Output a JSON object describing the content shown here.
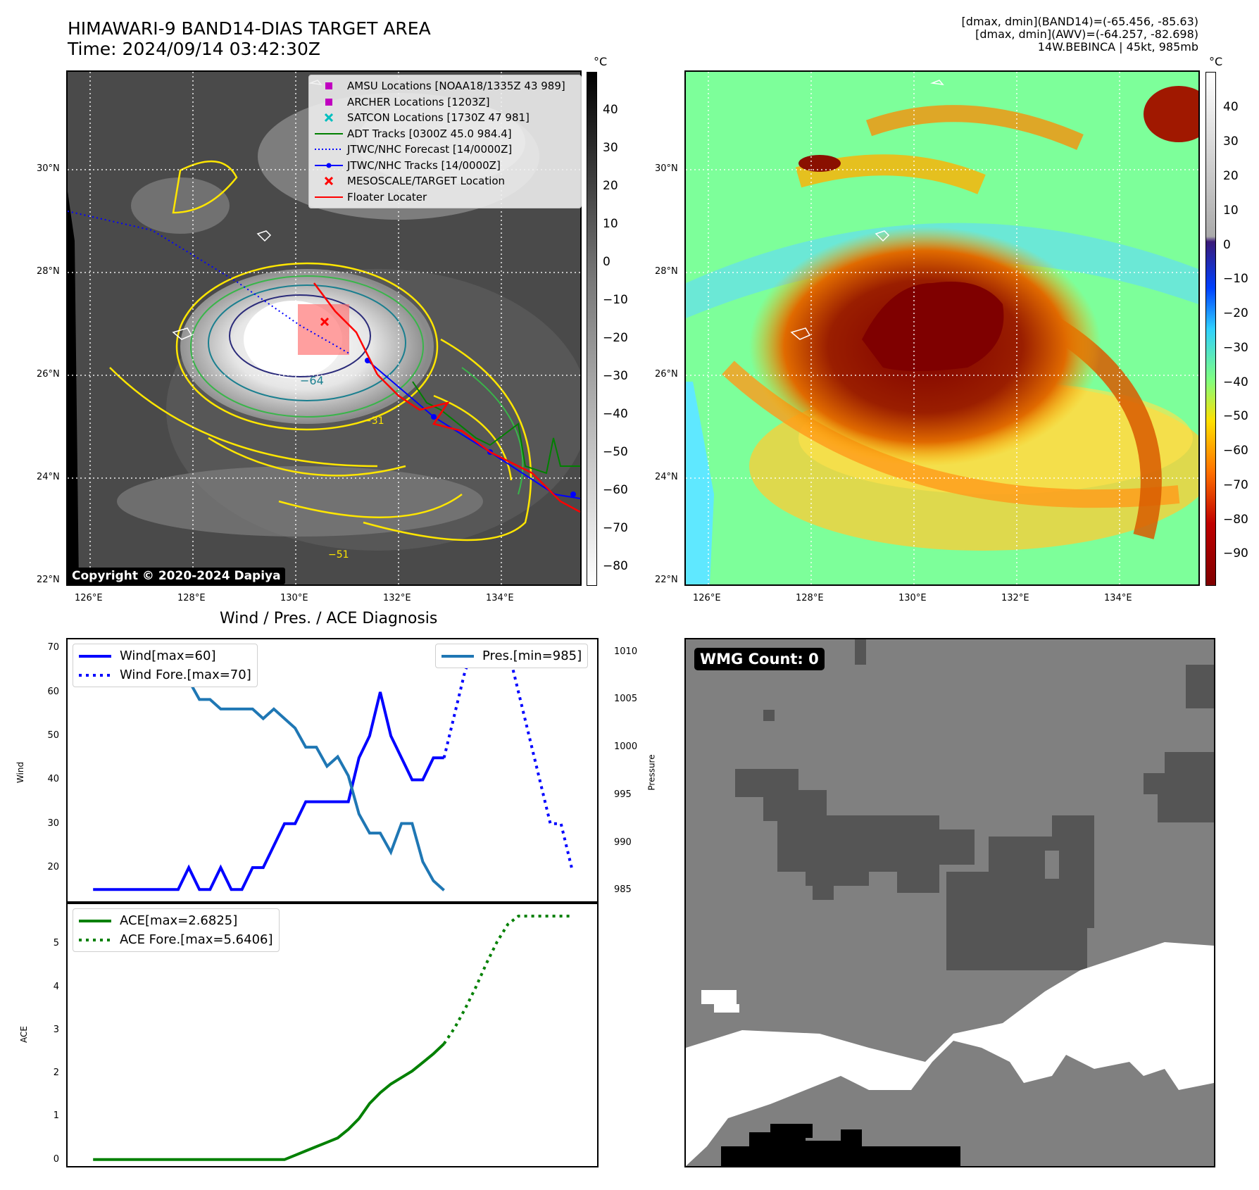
{
  "header": {
    "title_line1": "HIMAWARI-9 BAND14-DIAS TARGET AREA",
    "title_line2": "Time: 2024/09/14 03:42:30Z",
    "info_line1": "[dmax, dmin](BAND14)=(-65.456, -85.63)",
    "info_line2": "[dmax, dmin](AWV)=(-64.257, -82.698)",
    "info_line3": "14W.BEBINCA | 45kt, 985mb"
  },
  "map": {
    "lat_labels": [
      "30°N",
      "28°N",
      "26°N",
      "24°N",
      "22°N"
    ],
    "lon_labels": [
      "126°E",
      "128°E",
      "130°E",
      "132°E",
      "134°E"
    ],
    "copyright": "Copyright © 2020-2024 Dapiya",
    "contour_labels": [
      "−64",
      "−51",
      "−31"
    ],
    "legend": [
      {
        "label": "AMSU Locations [NOAA18/1335Z 43 989]",
        "icon": "square-marker",
        "color": "#c000c0"
      },
      {
        "label": "ARCHER Locations [1203Z]",
        "icon": "square-marker",
        "color": "#c000c0"
      },
      {
        "label": "SATCON Locations [1730Z 47 981]",
        "icon": "x-marker",
        "color": "#00bfbf"
      },
      {
        "label": "ADT Tracks [0300Z 45.0 984.4]",
        "icon": "solid-line",
        "color": "#008000"
      },
      {
        "label": "JTWC/NHC Forecast [14/0000Z]",
        "icon": "dotted-line",
        "color": "#0000ff"
      },
      {
        "label": "JTWC/NHC Tracks [14/0000Z]",
        "icon": "line-dot",
        "color": "#0000ff"
      },
      {
        "label": "MESOSCALE/TARGET Location",
        "icon": "x-marker",
        "color": "#ff0000"
      },
      {
        "label": "Floater Locater",
        "icon": "solid-line",
        "color": "#ff0000"
      }
    ],
    "colorbar_left": {
      "unit": "°C",
      "ticks": [
        "40",
        "30",
        "20",
        "10",
        "0",
        "−10",
        "−20",
        "−30",
        "−40",
        "−50",
        "−60",
        "−70",
        "−80"
      ]
    },
    "colorbar_right": {
      "unit": "°C",
      "ticks": [
        "40",
        "30",
        "20",
        "10",
        "0",
        "−10",
        "−20",
        "−30",
        "−40",
        "−50",
        "−60",
        "−70",
        "−80",
        "−90"
      ]
    }
  },
  "wmg": {
    "badge": "WMG Count: 0"
  },
  "chart_data": [
    {
      "type": "line",
      "title": "Wind / Pres. / ACE Diagnosis",
      "ylabel": "Wind",
      "ylabel_right": "Pressure",
      "ylim": [
        12,
        72
      ],
      "ylim_right": [
        983.7,
        1011.3
      ],
      "yticks": [
        20,
        30,
        40,
        50,
        60,
        70
      ],
      "yticks_right": [
        985,
        990,
        995,
        1000,
        1005,
        1010
      ],
      "series": [
        {
          "name": "Wind[max=60]",
          "style": "solid",
          "color": "#0000ff",
          "axis": "left",
          "x": [
            0,
            1,
            2,
            3,
            4,
            5,
            6,
            7,
            8,
            9,
            10,
            11,
            12,
            13,
            14,
            15,
            16,
            17,
            18,
            19,
            20,
            21,
            22,
            23,
            24,
            25,
            26,
            27,
            28,
            29,
            30,
            31,
            32,
            33
          ],
          "values": [
            15,
            15,
            15,
            15,
            15,
            15,
            15,
            15,
            15,
            20,
            15,
            15,
            20,
            15,
            15,
            20,
            20,
            25,
            30,
            30,
            35,
            35,
            35,
            35,
            35,
            45,
            50,
            60,
            50,
            45,
            40,
            40,
            45,
            45
          ]
        },
        {
          "name": "Wind Fore.[max=70]",
          "style": "dotted",
          "color": "#0000ff",
          "axis": "left",
          "x": [
            33,
            34,
            35,
            36,
            37,
            38,
            39,
            40,
            41,
            42,
            43,
            44,
            45
          ],
          "values": [
            45,
            55,
            65,
            70,
            70,
            70,
            70,
            60,
            50,
            40,
            30,
            30,
            20
          ]
        },
        {
          "name": "Pres.[min=985]",
          "style": "solid",
          "color": "#1f77b4",
          "axis": "right",
          "x": [
            0,
            1,
            2,
            3,
            4,
            5,
            6,
            7,
            8,
            9,
            10,
            11,
            12,
            13,
            14,
            15,
            16,
            17,
            18,
            19,
            20,
            21,
            22,
            23,
            24,
            25,
            26,
            27,
            28,
            29,
            30,
            31,
            32,
            33
          ],
          "values": [
            1010,
            1008.5,
            1008.5,
            1008.5,
            1008.5,
            1009,
            1009,
            1008,
            1008,
            1007,
            1005,
            1005,
            1004,
            1004,
            1004,
            1004,
            1003,
            1004,
            1003,
            1002,
            1000,
            1000,
            998,
            999,
            997,
            993,
            991,
            991,
            989,
            992,
            992,
            988,
            986,
            985
          ]
        }
      ]
    },
    {
      "type": "line",
      "ylabel": "ACE",
      "ylim": [
        -0.15,
        5.95
      ],
      "yticks": [
        0,
        1,
        2,
        3,
        4,
        5
      ],
      "series": [
        {
          "name": "ACE[max=2.6825]",
          "style": "solid",
          "color": "#008000",
          "x": [
            0,
            1,
            2,
            3,
            4,
            5,
            6,
            7,
            8,
            9,
            10,
            11,
            12,
            13,
            14,
            15,
            16,
            17,
            18,
            19,
            20,
            21,
            22,
            23,
            24,
            25,
            26,
            27,
            28,
            29,
            30,
            31,
            32,
            33
          ],
          "values": [
            0,
            0,
            0,
            0,
            0,
            0,
            0,
            0,
            0,
            0,
            0,
            0,
            0,
            0,
            0,
            0,
            0,
            0,
            0,
            0.1,
            0.2,
            0.3,
            0.4,
            0.5,
            0.7,
            0.95,
            1.3,
            1.55,
            1.75,
            1.9,
            2.05,
            2.25,
            2.45,
            2.6825
          ]
        },
        {
          "name": "ACE Fore.[max=5.6406]",
          "style": "dotted",
          "color": "#008000",
          "x": [
            33,
            34,
            35,
            36,
            37,
            38,
            39,
            40,
            41,
            42,
            43,
            44,
            45
          ],
          "values": [
            2.6825,
            3.05,
            3.5,
            4.0,
            4.55,
            5.05,
            5.45,
            5.6406,
            5.6406,
            5.6406,
            5.6406,
            5.6406,
            5.6406
          ]
        }
      ]
    }
  ]
}
